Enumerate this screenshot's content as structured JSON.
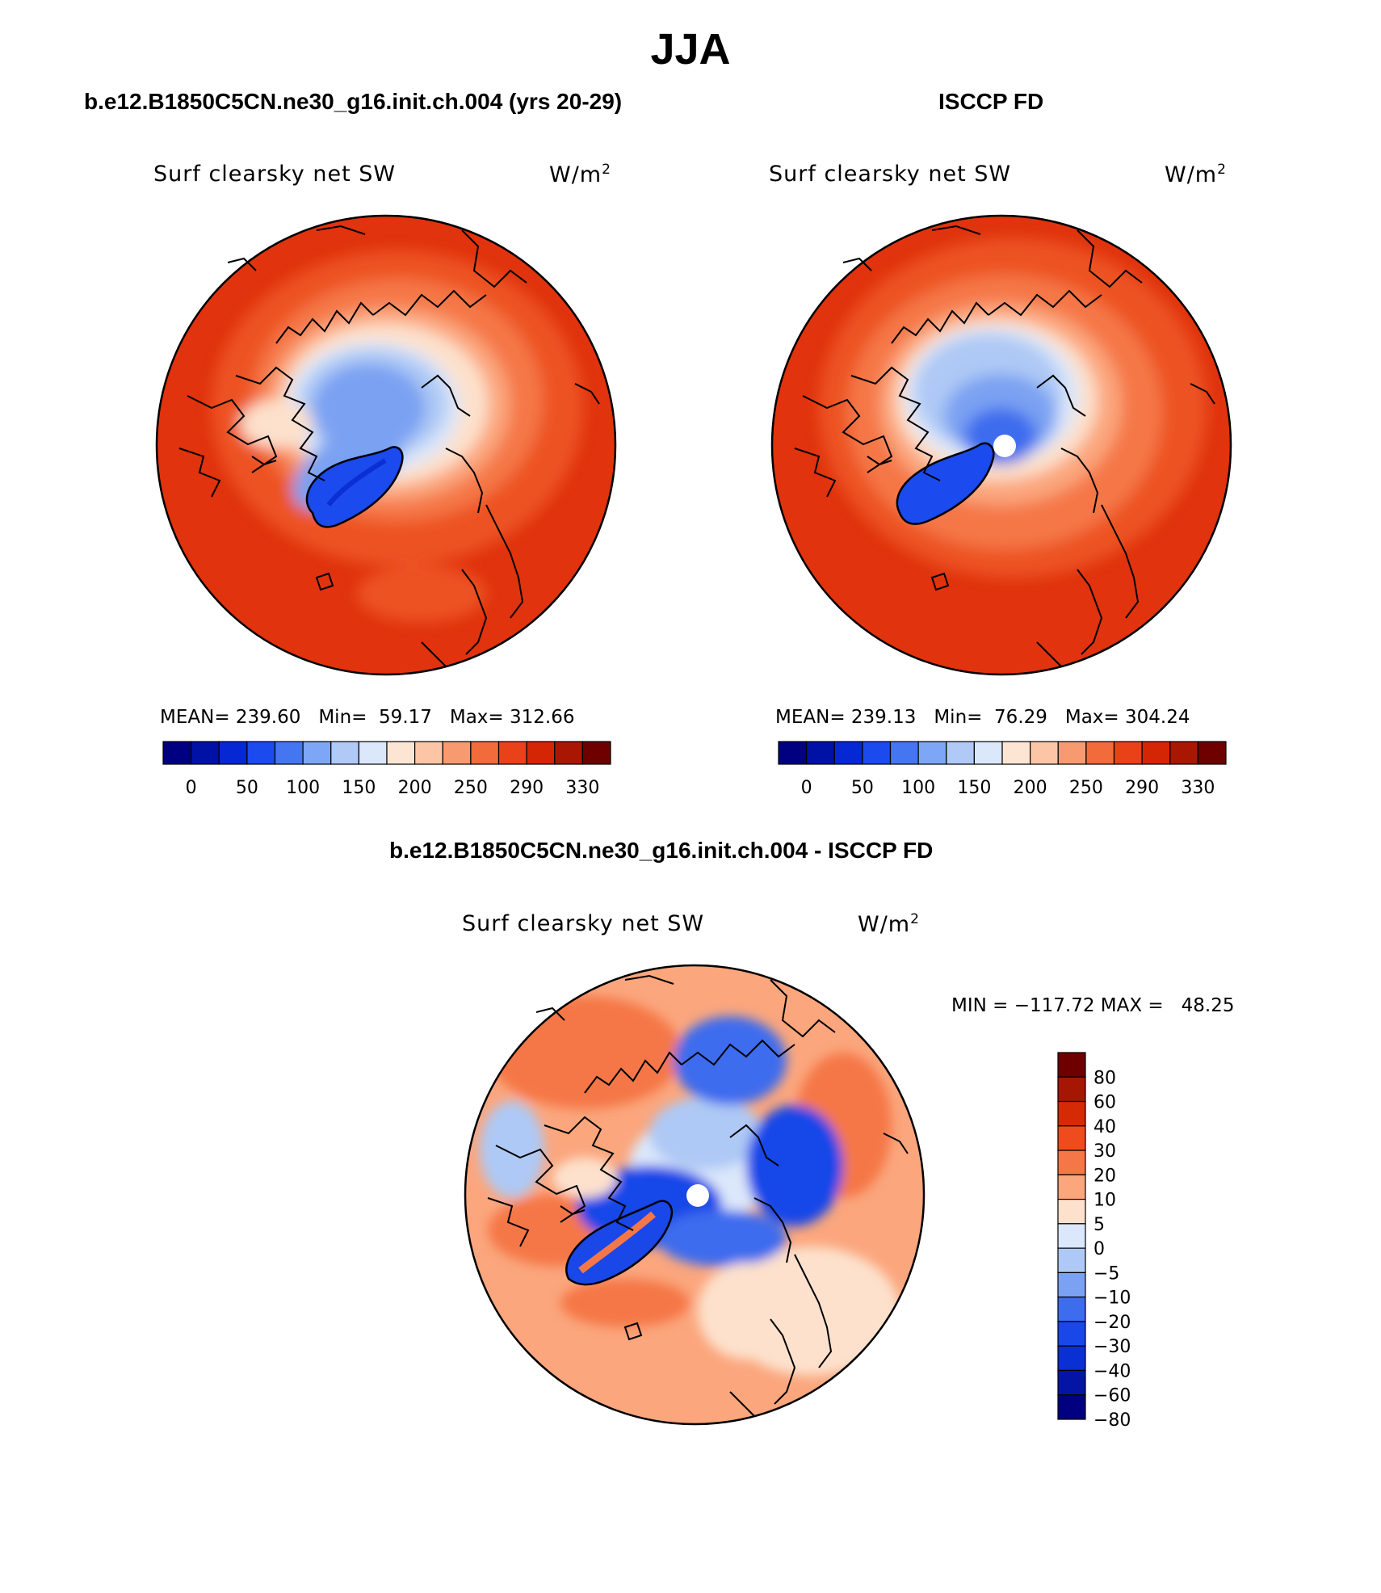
{
  "title": "JJA",
  "panels": [
    {
      "id": "model",
      "header": "b.e12.B1850C5CN.ne30_g16.init.ch.004 (yrs 20-29)",
      "label_left": "Surf clearsky net SW",
      "units_base": "W/m",
      "units_exp": "2",
      "stats": {
        "mean_label": "MEAN=",
        "mean": "239.60",
        "min_label": "Min=",
        "min": "59.17",
        "max_label": "Max=",
        "max": "312.66"
      }
    },
    {
      "id": "obs",
      "header": "ISCCP FD",
      "label_left": "Surf clearsky net SW",
      "units_base": "W/m",
      "units_exp": "2",
      "stats": {
        "mean_label": "MEAN=",
        "mean": "239.13",
        "min_label": "Min=",
        "min": "76.29",
        "max_label": "Max=",
        "max": "304.24"
      }
    },
    {
      "id": "diff",
      "header": "b.e12.B1850C5CN.ne30_g16.init.ch.004 - ISCCP FD",
      "label_left": "Surf clearsky net SW",
      "units_base": "W/m",
      "units_exp": "2",
      "minmax": "MIN = −117.72 MAX =   48.25"
    }
  ],
  "colorbar_abs": {
    "colors": [
      "#000080",
      "#0011a6",
      "#0528d4",
      "#1b4aef",
      "#4476f2",
      "#7ea6f6",
      "#b0c9f6",
      "#dbe7fa",
      "#fde5d4",
      "#fcc6a6",
      "#f89a6f",
      "#f26b3b",
      "#e94118",
      "#d42605",
      "#a91703",
      "#6e0000"
    ],
    "tick_labels": [
      "0",
      "50",
      "100",
      "150",
      "200",
      "250",
      "290",
      "330"
    ]
  },
  "colorbar_diff": {
    "colors": [
      "#6e0000",
      "#a51702",
      "#d42a05",
      "#ef4c1d",
      "#f57747",
      "#fba67d",
      "#fde1cc",
      "#dbe7fa",
      "#aec9f5",
      "#7aa1f2",
      "#3d6cee",
      "#1947e8",
      "#0a2fd2",
      "#0415a6",
      "#000080"
    ],
    "tick_labels": [
      "80",
      "60",
      "40",
      "30",
      "20",
      "10",
      "5",
      "0",
      "−5",
      "−10",
      "−20",
      "−30",
      "−40",
      "−60",
      "−80"
    ]
  },
  "map_colors": {
    "outer_dark": "#e0330e",
    "outer": "#ed5320",
    "mid": "#f57747",
    "light": "#fba67d",
    "pale": "#fde1cc",
    "ice_pale": "#dbe7fa",
    "ice_light": "#aec9f5",
    "ice_mid": "#7aa1f2",
    "ice_deep": "#3d6cee",
    "greenland": "#1b4aef"
  }
}
